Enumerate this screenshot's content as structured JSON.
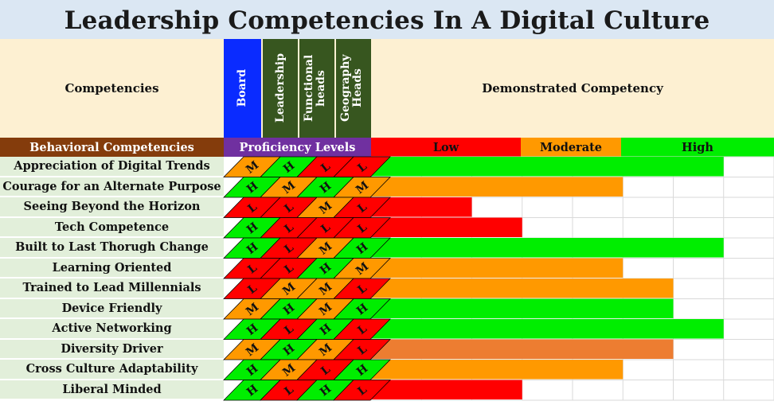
{
  "chart_data": {
    "type": "table",
    "title": "Leadership Competencies In A Digital Culture",
    "header": {
      "competencies_label": "Competencies",
      "columns": [
        "Board",
        "Leadership",
        "Functional heads",
        "Geography Heads"
      ],
      "demonstrated_label": "Demonstrated Competency",
      "behavioral_label": "Behavioral Competencies",
      "proficiency_label": "Proficiency Levels",
      "levels": [
        "Low",
        "Moderate",
        "High"
      ]
    },
    "level_colors": {
      "L": "#ff0000",
      "M": "#ff9900",
      "H": "#00ee00"
    },
    "bar_scale_max": 10,
    "rows": [
      {
        "label": "Appreciation of Digital Trends",
        "ratings": [
          "M",
          "H",
          "L",
          "L"
        ],
        "bar": "H",
        "value": 7
      },
      {
        "label": "Courage for an Alternate Purpose",
        "ratings": [
          "H",
          "M",
          "H",
          "M"
        ],
        "bar": "M",
        "value": 5
      },
      {
        "label": "Seeing Beyond the Horizon",
        "ratings": [
          "L",
          "L",
          "M",
          "L"
        ],
        "bar": "L",
        "value": 2
      },
      {
        "label": "Tech Competence",
        "ratings": [
          "H",
          "L",
          "L",
          "L"
        ],
        "bar": "L",
        "value": 3
      },
      {
        "label": "Built to Last Thorugh Change",
        "ratings": [
          "H",
          "L",
          "M",
          "H"
        ],
        "bar": "H",
        "value": 7
      },
      {
        "label": "Learning Oriented",
        "ratings": [
          "L",
          "L",
          "H",
          "M"
        ],
        "bar": "M",
        "value": 5
      },
      {
        "label": "Trained to Lead Millennials",
        "ratings": [
          "L",
          "M",
          "M",
          "L"
        ],
        "bar": "M",
        "value": 6
      },
      {
        "label": "Device Friendly",
        "ratings": [
          "M",
          "H",
          "M",
          "H"
        ],
        "bar": "H",
        "value": 6
      },
      {
        "label": "Active Networking",
        "ratings": [
          "H",
          "L",
          "H",
          "L"
        ],
        "bar": "H",
        "value": 7
      },
      {
        "label": "Diversity Driver",
        "ratings": [
          "M",
          "H",
          "M",
          "L"
        ],
        "bar": "M2",
        "value": 6
      },
      {
        "label": "Cross Culture Adaptability",
        "ratings": [
          "H",
          "M",
          "L",
          "H"
        ],
        "bar": "M",
        "value": 5
      },
      {
        "label": "Liberal Minded",
        "ratings": [
          "H",
          "L",
          "H",
          "L"
        ],
        "bar": "L",
        "value": 3
      }
    ],
    "bar_colors": {
      "L": "#ff0000",
      "M": "#ff9900",
      "M2": "#ed7d31",
      "H": "#00ee00"
    },
    "header_colors": {
      "board": "#0a2bff",
      "other": "#37561f",
      "behavioral": "#843c0c",
      "proficiency": "#7030a0",
      "low": "#ff0000",
      "moderate": "#ff9900",
      "high": "#00ee00"
    }
  }
}
